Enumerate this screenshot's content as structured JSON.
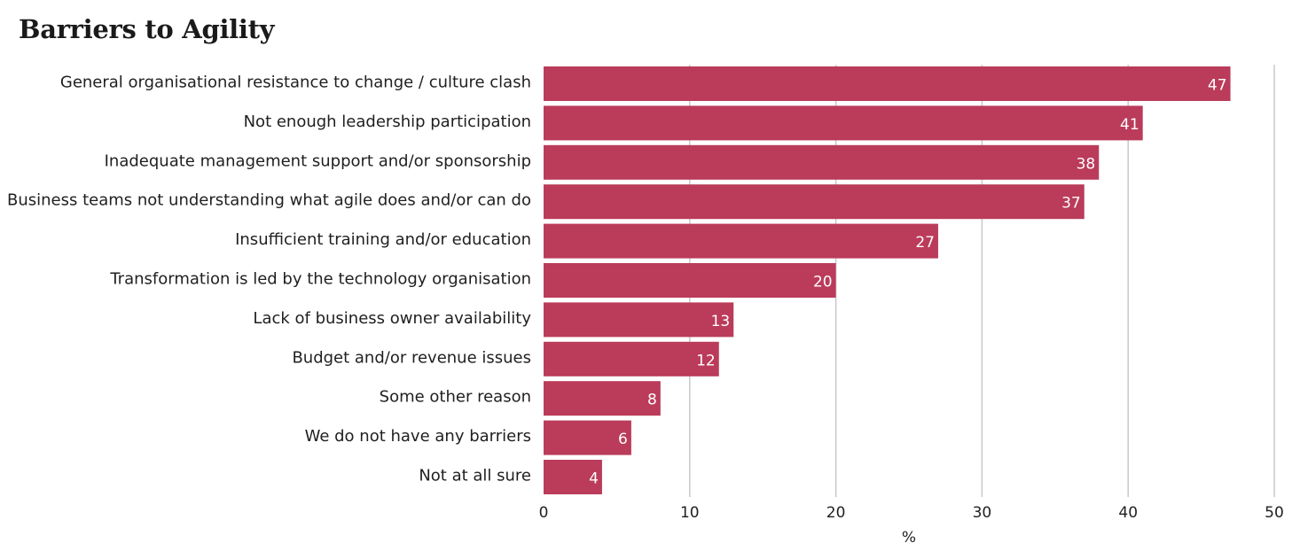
{
  "chart_data": {
    "type": "bar",
    "orientation": "horizontal",
    "title": "Barriers to Agility",
    "xlabel": "%",
    "ylabel": "",
    "xlim": [
      0,
      50
    ],
    "xticks": [
      0,
      10,
      20,
      30,
      40,
      50
    ],
    "grid": true,
    "bar_color": "#bb3b5a",
    "categories": [
      "General organisational resistance to change / culture clash",
      "Not enough leadership participation",
      "Inadequate management support and/or sponsorship",
      "Business teams not understanding what agile does and/or can do",
      "Insufficient training and/or education",
      "Transformation is led by the technology organisation",
      "Lack of business owner availability",
      "Budget and/or revenue issues",
      "Some other reason",
      "We do not have any barriers",
      "Not at all sure"
    ],
    "values": [
      47,
      41,
      38,
      37,
      27,
      20,
      13,
      12,
      8,
      6,
      4
    ]
  }
}
